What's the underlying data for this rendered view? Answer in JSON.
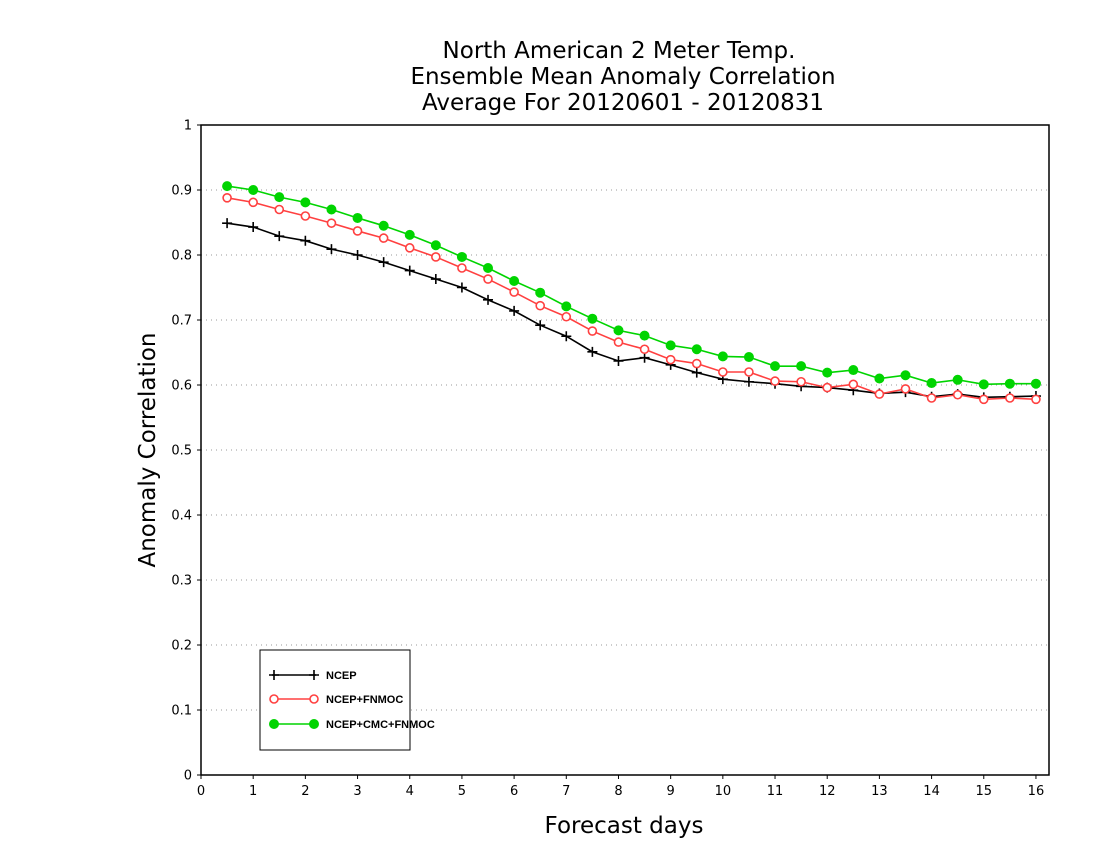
{
  "chart_data": {
    "type": "line",
    "title": [
      "North American 2 Meter Temp.",
      "Ensemble Mean Anomaly Correlation",
      "Average For 20120601 - 20120831"
    ],
    "xlabel": "Forecast days",
    "ylabel": "Anomaly Correlation",
    "xlim": [
      0,
      16.25
    ],
    "ylim": [
      0,
      1
    ],
    "xticks": [
      "0",
      "1",
      "2",
      "3",
      "4",
      "5",
      "6",
      "7",
      "8",
      "9",
      "10",
      "11",
      "12",
      "13",
      "14",
      "15",
      "16"
    ],
    "yticks": [
      "0",
      "0.1",
      "0.2",
      "0.3",
      "0.4",
      "0.5",
      "0.6",
      "0.7",
      "0.8",
      "0.9",
      "1"
    ],
    "grid": "horizontal dotted",
    "legend_position": "bottom-left",
    "x": [
      0.5,
      1,
      1.5,
      2,
      2.5,
      3,
      3.5,
      4,
      4.5,
      5,
      5.5,
      6,
      6.5,
      7,
      7.5,
      8,
      8.5,
      9,
      9.5,
      10,
      10.5,
      11,
      11.5,
      12,
      12.5,
      13,
      13.5,
      14,
      14.5,
      15,
      15.5,
      16
    ],
    "series": [
      {
        "name": "NCEP",
        "color": "#000000",
        "marker": "plus",
        "values": [
          0.849,
          0.843,
          0.829,
          0.822,
          0.809,
          0.8,
          0.789,
          0.776,
          0.763,
          0.75,
          0.731,
          0.714,
          0.692,
          0.675,
          0.651,
          0.637,
          0.642,
          0.631,
          0.619,
          0.609,
          0.605,
          0.602,
          0.598,
          0.596,
          0.592,
          0.587,
          0.589,
          0.582,
          0.586,
          0.581,
          0.582,
          0.583
        ]
      },
      {
        "name": "NCEP+FNMOC",
        "color": "#ff4040",
        "marker": "open-circle",
        "values": [
          0.888,
          0.881,
          0.87,
          0.86,
          0.849,
          0.837,
          0.826,
          0.811,
          0.797,
          0.78,
          0.763,
          0.743,
          0.722,
          0.705,
          0.683,
          0.666,
          0.655,
          0.639,
          0.633,
          0.62,
          0.62,
          0.606,
          0.605,
          0.596,
          0.601,
          0.586,
          0.594,
          0.58,
          0.585,
          0.578,
          0.58,
          0.578
        ]
      },
      {
        "name": "NCEP+CMC+FNMOC",
        "color": "#00d400",
        "marker": "filled-circle",
        "values": [
          0.906,
          0.9,
          0.889,
          0.881,
          0.87,
          0.857,
          0.845,
          0.831,
          0.815,
          0.797,
          0.78,
          0.76,
          0.742,
          0.721,
          0.702,
          0.684,
          0.676,
          0.661,
          0.655,
          0.644,
          0.643,
          0.629,
          0.629,
          0.619,
          0.623,
          0.61,
          0.615,
          0.603,
          0.608,
          0.601,
          0.602,
          0.602
        ]
      }
    ]
  }
}
